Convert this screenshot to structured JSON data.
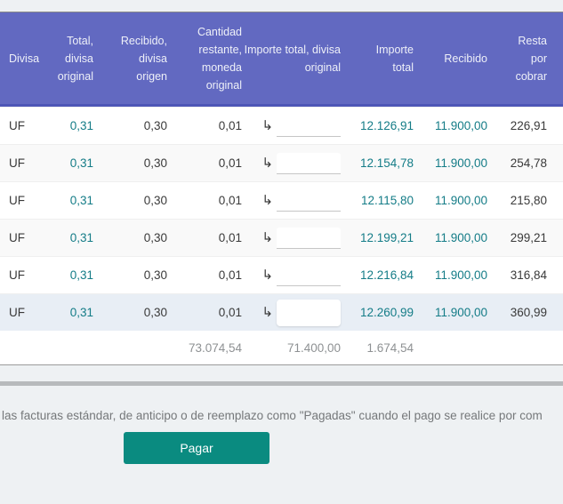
{
  "icons": {
    "row_arrow": "↳"
  },
  "colors": {
    "header_bg": "#6269c1",
    "accent_teal": "#147c87",
    "button_bg": "#0a8b80"
  },
  "table": {
    "columns": [
      {
        "label": "Divisa"
      },
      {
        "label": "Total, divisa original"
      },
      {
        "label": "Recibido, divisa origen"
      },
      {
        "label": "Cantidad restante, moneda original"
      },
      {
        "label": "Importe total, divisa original"
      },
      {
        "label": "Importe total"
      },
      {
        "label": "Recibido"
      },
      {
        "label": "Resta por cobrar"
      }
    ],
    "rows": [
      {
        "divisa": "UF",
        "total_divisa_original": "0,31",
        "recibido_divisa_origen": "0,30",
        "cantidad_restante": "0,01",
        "importe_input": "",
        "importe_total": "12.126,91",
        "recibido": "11.900,00",
        "resta_por_cobrar": "226,91"
      },
      {
        "divisa": "UF",
        "total_divisa_original": "0,31",
        "recibido_divisa_origen": "0,30",
        "cantidad_restante": "0,01",
        "importe_input": "",
        "importe_total": "12.154,78",
        "recibido": "11.900,00",
        "resta_por_cobrar": "254,78"
      },
      {
        "divisa": "UF",
        "total_divisa_original": "0,31",
        "recibido_divisa_origen": "0,30",
        "cantidad_restante": "0,01",
        "importe_input": "",
        "importe_total": "12.115,80",
        "recibido": "11.900,00",
        "resta_por_cobrar": "215,80"
      },
      {
        "divisa": "UF",
        "total_divisa_original": "0,31",
        "recibido_divisa_origen": "0,30",
        "cantidad_restante": "0,01",
        "importe_input": "",
        "importe_total": "12.199,21",
        "recibido": "11.900,00",
        "resta_por_cobrar": "299,21"
      },
      {
        "divisa": "UF",
        "total_divisa_original": "0,31",
        "recibido_divisa_origen": "0,30",
        "cantidad_restante": "0,01",
        "importe_input": "",
        "importe_total": "12.216,84",
        "recibido": "11.900,00",
        "resta_por_cobrar": "316,84"
      },
      {
        "divisa": "UF",
        "total_divisa_original": "0,31",
        "recibido_divisa_origen": "0,30",
        "cantidad_restante": "0,01",
        "importe_input": "",
        "importe_total": "12.260,99",
        "recibido": "11.900,00",
        "resta_por_cobrar": "360,99"
      }
    ],
    "totals": {
      "cantidad_restante": "73.074,54",
      "importe_total_divisa_original": "71.400,00",
      "importe_total": "1.674,54"
    }
  },
  "footer": {
    "note": "las facturas estándar, de anticipo o de reemplazo como \"Pagadas\" cuando el pago se realice por com",
    "pay_button_label": "Pagar"
  }
}
